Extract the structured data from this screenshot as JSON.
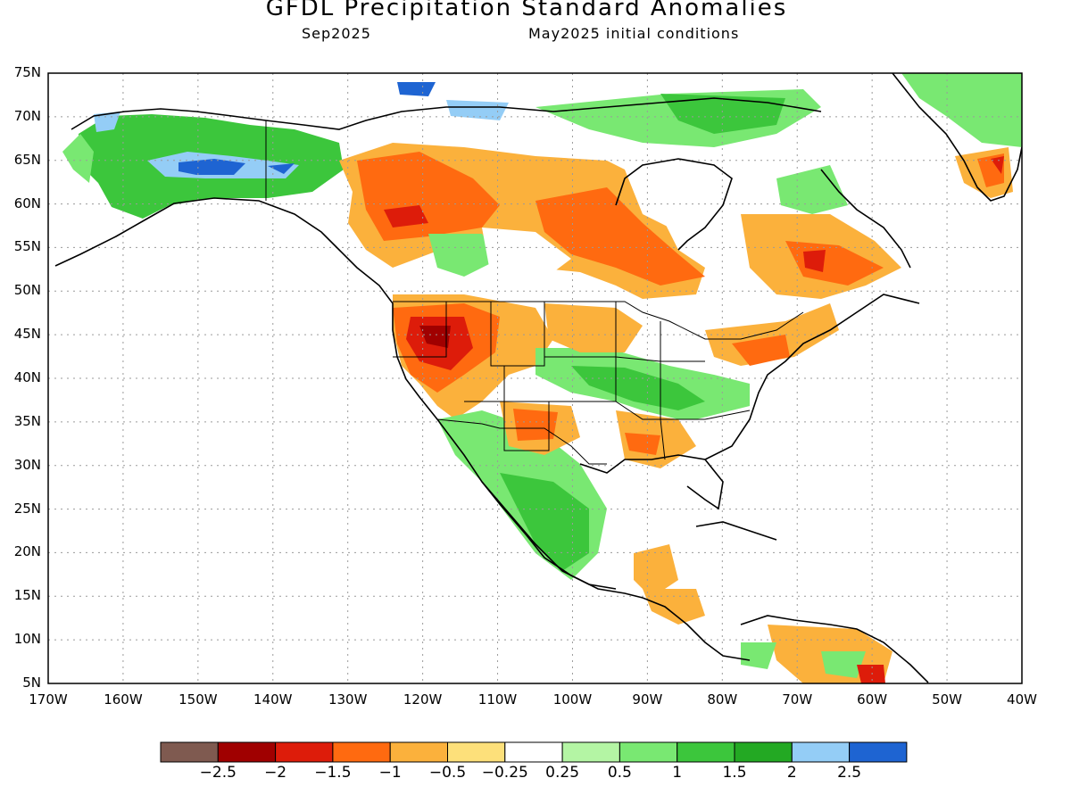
{
  "title": "GFDL Precipitation Standard Anomalies",
  "subtitle_left": "Sep2025",
  "subtitle_right": "May2025 initial conditions",
  "lat_labels": [
    "75N",
    "70N",
    "65N",
    "60N",
    "55N",
    "50N",
    "45N",
    "40N",
    "35N",
    "30N",
    "25N",
    "20N",
    "15N",
    "10N",
    "5N"
  ],
  "lon_labels": [
    "170W",
    "160W",
    "150W",
    "140W",
    "130W",
    "120W",
    "110W",
    "100W",
    "90W",
    "80W",
    "70W",
    "60W",
    "50W",
    "40W"
  ],
  "colorbar": {
    "colors": [
      "#7f5a50",
      "#a00000",
      "#dd1c0a",
      "#ff6a10",
      "#fbb13c",
      "#fde07a",
      "#ffffff",
      "#b4f5a4",
      "#79e872",
      "#3cc63c",
      "#23a923",
      "#94cdf6",
      "#1e64d2"
    ],
    "labels": [
      "−2.5",
      "−2",
      "−1.5",
      "−1",
      "−0.5",
      "−0.25",
      "0.25",
      "0.5",
      "1",
      "1.5",
      "2",
      "2.5"
    ]
  },
  "colors": {
    "frame": "#000000",
    "coast": "#000000",
    "grid": "#9a9a9a"
  }
}
